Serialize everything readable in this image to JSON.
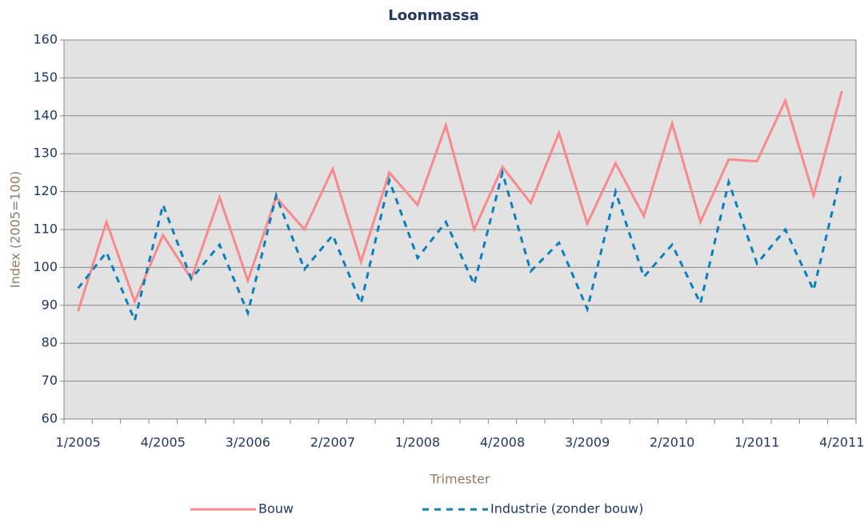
{
  "chart_data": {
    "type": "line",
    "title": "Loonmassa",
    "x_label": "Trimester",
    "y_label": "Index (2005=100)",
    "categories": [
      "1/2005",
      null,
      null,
      "4/2005",
      null,
      null,
      "3/2006",
      null,
      null,
      "2/2007",
      null,
      null,
      "1/2008",
      null,
      null,
      "4/2008",
      null,
      null,
      "3/2009",
      null,
      null,
      "2/2010",
      null,
      null,
      "1/2011",
      null,
      null,
      "4/2011"
    ],
    "series": [
      {
        "name": "Bouw",
        "color": "#f98a8c",
        "dashed": false,
        "values": [
          88.5,
          112,
          91,
          108.5,
          97,
          118.5,
          96.5,
          118.5,
          110,
          126,
          101.5,
          125,
          116.5,
          137.5,
          110,
          126.5,
          117,
          135.5,
          111.5,
          127.5,
          113.5,
          138,
          112,
          128.5,
          128,
          144,
          119,
          146.5
        ]
      },
      {
        "name": "Industrie (zonder bouw)",
        "color": "#0a7fbf",
        "dashed": true,
        "values": [
          94.5,
          104,
          86,
          116.5,
          97,
          106,
          88,
          119,
          99.5,
          108.5,
          90.5,
          123,
          102.5,
          112,
          95.5,
          125,
          99,
          106.5,
          89,
          120,
          97.5,
          106,
          90.5,
          122.5,
          101,
          110,
          94,
          125.5
        ]
      }
    ],
    "ylim": [
      60,
      160
    ],
    "yticks": [
      60,
      70,
      80,
      90,
      100,
      110,
      120,
      130,
      140,
      150,
      160
    ],
    "grid": true,
    "legend": "bottom"
  }
}
